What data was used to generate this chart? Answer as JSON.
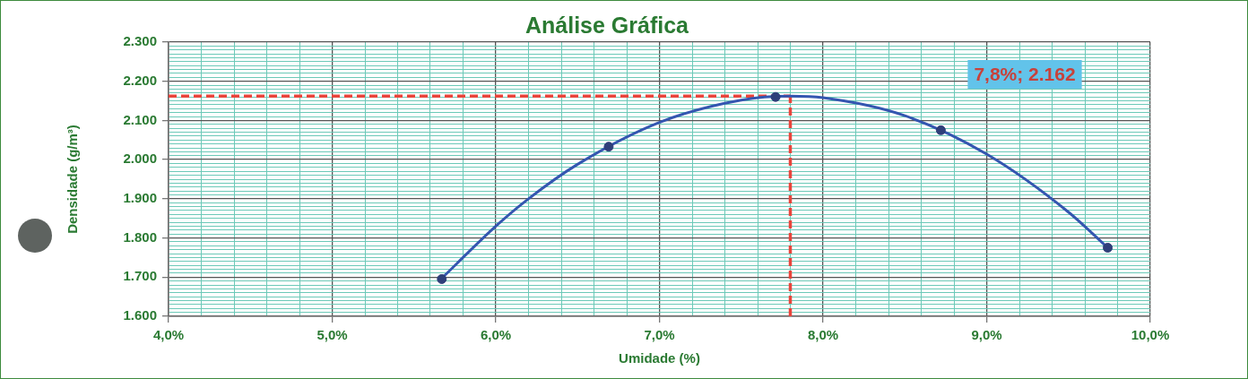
{
  "chart_data": {
    "type": "scatter",
    "title": "Análise Gráfica",
    "xlabel": "Umidade (%)",
    "ylabel": "Densidade (g/m³)",
    "series": [
      {
        "type": "scatter",
        "color": "#2f3f7a",
        "marker": "circle",
        "x": [
          5.67,
          6.69,
          7.71,
          8.72,
          9.74
        ],
        "values": [
          1695,
          2033,
          2160,
          2075,
          1775
        ]
      },
      {
        "type": "line",
        "color": "#3456b0",
        "marker": "none",
        "line_style": "solid",
        "x": [
          5.67,
          6.0,
          6.2,
          6.5,
          7.0,
          7.5,
          7.8,
          8.0,
          8.5,
          9.0,
          9.5,
          9.74
        ],
        "values": [
          1697,
          1830,
          1900,
          1988,
          2095,
          2152,
          2162,
          2158,
          2112,
          2014,
          1866,
          1775
        ]
      }
    ],
    "xlim": [
      4,
      10
    ],
    "ylim": [
      1600,
      2300
    ],
    "xticks": [
      {
        "value": 4,
        "label": "4,0%"
      },
      {
        "value": 4.2,
        "label": null
      },
      {
        "value": 4.4,
        "label": null
      },
      {
        "value": 4.6,
        "label": null
      },
      {
        "value": 4.8,
        "label": null
      },
      {
        "value": 5,
        "label": "5,0%"
      },
      {
        "value": 5.2,
        "label": null
      },
      {
        "value": 5.4,
        "label": null
      },
      {
        "value": 5.6,
        "label": null
      },
      {
        "value": 5.8,
        "label": null
      },
      {
        "value": 6,
        "label": "6,0%"
      },
      {
        "value": 6.2,
        "label": null
      },
      {
        "value": 6.4,
        "label": null
      },
      {
        "value": 6.6,
        "label": null
      },
      {
        "value": 6.8,
        "label": null
      },
      {
        "value": 7,
        "label": "7,0%"
      },
      {
        "value": 7.2,
        "label": null
      },
      {
        "value": 7.4,
        "label": null
      },
      {
        "value": 7.6,
        "label": null
      },
      {
        "value": 7.8,
        "label": null
      },
      {
        "value": 8,
        "label": "8,0%"
      },
      {
        "value": 8.2,
        "label": null
      },
      {
        "value": 8.4,
        "label": null
      },
      {
        "value": 8.6,
        "label": null
      },
      {
        "value": 8.8,
        "label": null
      },
      {
        "value": 9,
        "label": "9,0%"
      },
      {
        "value": 9.2,
        "label": null
      },
      {
        "value": 9.4,
        "label": null
      },
      {
        "value": 9.6,
        "label": null
      },
      {
        "value": 9.8,
        "label": null
      },
      {
        "value": 10,
        "label": "10,0%"
      }
    ],
    "yticks": [
      {
        "value": 1600,
        "label": "1.600"
      },
      {
        "value": 1610,
        "label": null
      },
      {
        "value": 1620,
        "label": null
      },
      {
        "value": 1630,
        "label": null
      },
      {
        "value": 1640,
        "label": null
      },
      {
        "value": 1650,
        "label": null
      },
      {
        "value": 1660,
        "label": null
      },
      {
        "value": 1670,
        "label": null
      },
      {
        "value": 1680,
        "label": null
      },
      {
        "value": 1690,
        "label": null
      },
      {
        "value": 1700,
        "label": "1.700"
      },
      {
        "value": 1710,
        "label": null
      },
      {
        "value": 1720,
        "label": null
      },
      {
        "value": 1730,
        "label": null
      },
      {
        "value": 1740,
        "label": null
      },
      {
        "value": 1750,
        "label": null
      },
      {
        "value": 1760,
        "label": null
      },
      {
        "value": 1770,
        "label": null
      },
      {
        "value": 1780,
        "label": null
      },
      {
        "value": 1790,
        "label": null
      },
      {
        "value": 1800,
        "label": "1.800"
      },
      {
        "value": 1810,
        "label": null
      },
      {
        "value": 1820,
        "label": null
      },
      {
        "value": 1830,
        "label": null
      },
      {
        "value": 1840,
        "label": null
      },
      {
        "value": 1850,
        "label": null
      },
      {
        "value": 1860,
        "label": null
      },
      {
        "value": 1870,
        "label": null
      },
      {
        "value": 1880,
        "label": null
      },
      {
        "value": 1890,
        "label": null
      },
      {
        "value": 1900,
        "label": "1.900"
      },
      {
        "value": 1910,
        "label": null
      },
      {
        "value": 1920,
        "label": null
      },
      {
        "value": 1930,
        "label": null
      },
      {
        "value": 1940,
        "label": null
      },
      {
        "value": 1950,
        "label": null
      },
      {
        "value": 1960,
        "label": null
      },
      {
        "value": 1970,
        "label": null
      },
      {
        "value": 1980,
        "label": null
      },
      {
        "value": 1990,
        "label": null
      },
      {
        "value": 2000,
        "label": "2.000"
      },
      {
        "value": 2010,
        "label": null
      },
      {
        "value": 2020,
        "label": null
      },
      {
        "value": 2030,
        "label": null
      },
      {
        "value": 2040,
        "label": null
      },
      {
        "value": 2050,
        "label": null
      },
      {
        "value": 2060,
        "label": null
      },
      {
        "value": 2070,
        "label": null
      },
      {
        "value": 2080,
        "label": null
      },
      {
        "value": 2090,
        "label": null
      },
      {
        "value": 2100,
        "label": "2.100"
      },
      {
        "value": 2110,
        "label": null
      },
      {
        "value": 2120,
        "label": null
      },
      {
        "value": 2130,
        "label": null
      },
      {
        "value": 2140,
        "label": null
      },
      {
        "value": 2150,
        "label": null
      },
      {
        "value": 2160,
        "label": null
      },
      {
        "value": 2170,
        "label": null
      },
      {
        "value": 2180,
        "label": null
      },
      {
        "value": 2190,
        "label": null
      },
      {
        "value": 2200,
        "label": "2.200"
      },
      {
        "value": 2210,
        "label": null
      },
      {
        "value": 2220,
        "label": null
      },
      {
        "value": 2230,
        "label": null
      },
      {
        "value": 2240,
        "label": null
      },
      {
        "value": 2250,
        "label": null
      },
      {
        "value": 2260,
        "label": null
      },
      {
        "value": 2270,
        "label": null
      },
      {
        "value": 2280,
        "label": null
      },
      {
        "value": 2290,
        "label": null
      },
      {
        "value": 2300,
        "label": "2.300"
      }
    ],
    "grid": true,
    "legend": false,
    "ref_lines": [
      {
        "axis": "x",
        "value": 7.8,
        "color": "#e8453c",
        "line_style": "dashed"
      },
      {
        "axis": "y",
        "value": 2162,
        "color": "#e8453c",
        "line_style": "dashed"
      }
    ],
    "annotations": [
      "7,8%; 2.162"
    ]
  }
}
